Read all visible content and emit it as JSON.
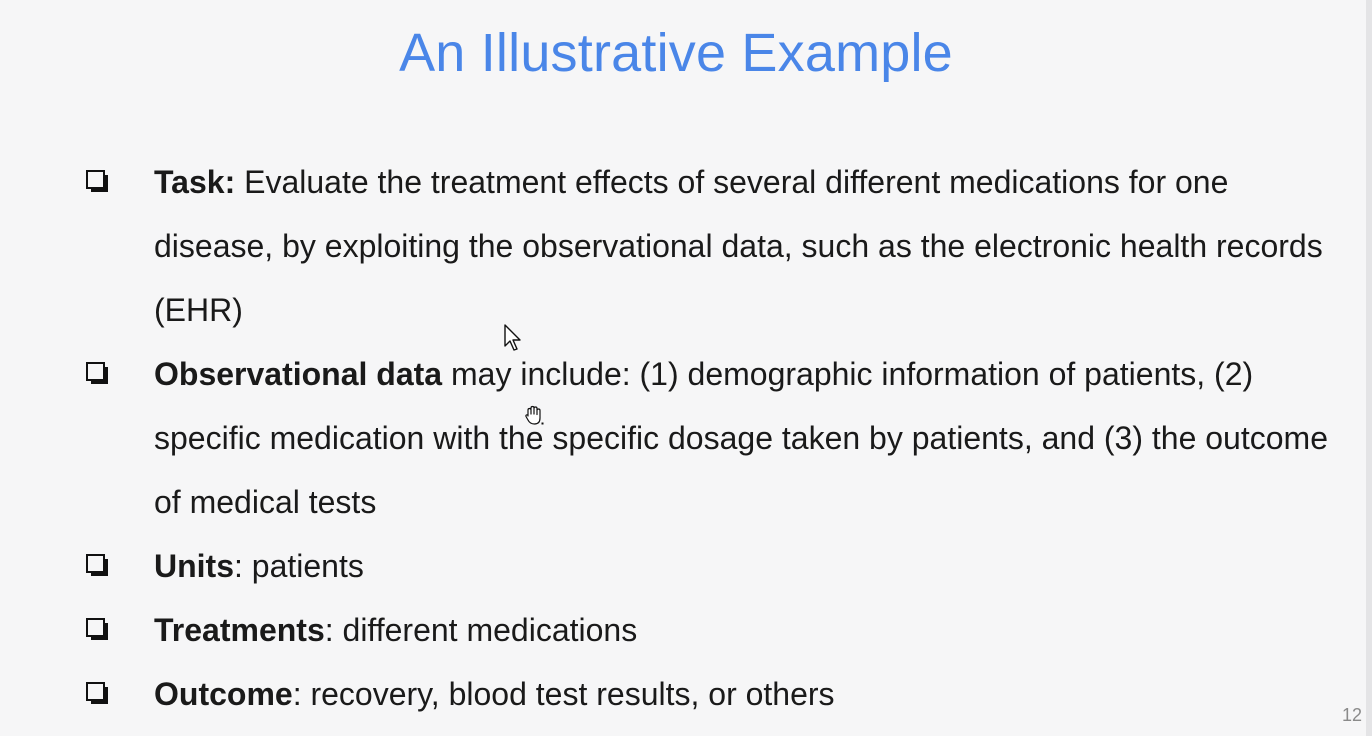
{
  "slide": {
    "title": "An Illustrative Example",
    "page_number": "12",
    "bullets": [
      {
        "bold": "Task:",
        "text": " Evaluate the treatment effects of several different medications for one disease, by exploiting the observational data, such as the electronic health records (EHR)"
      },
      {
        "bold": "Observational data",
        "text": " may include: (1) demographic information of patients, (2) specific medication with the specific dosage taken by patients, and (3) the outcome of medical tests"
      },
      {
        "bold": "Units",
        "text": ": patients"
      },
      {
        "bold": "Treatments",
        "text": ": different medications"
      },
      {
        "bold": "Outcome",
        "text": ": recovery, blood test results, or others"
      }
    ]
  },
  "colors": {
    "title": "#4a86e8",
    "text": "#1a1a1a",
    "background": "#f6f6f7"
  },
  "icons": {
    "bullet": "shadowed-checkbox-bullet-icon",
    "cursor": "mouse-pointer-icon",
    "hand": "hand-grab-cursor-icon"
  }
}
